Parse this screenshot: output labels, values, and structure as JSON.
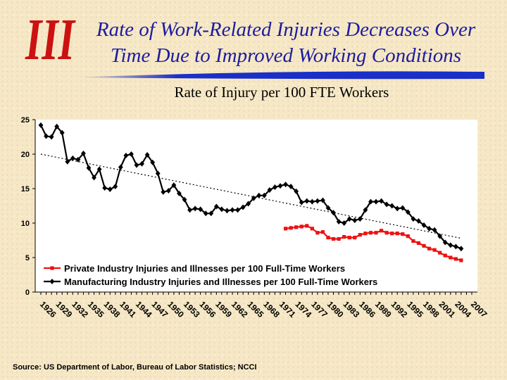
{
  "header": {
    "title_line1": "Rate of Work-Related Injuries Decreases Over",
    "title_line2": "Time Due to Improved Working Conditions",
    "logo_text": "III"
  },
  "footer": {
    "source": "Source: US Department of Labor, Bureau of Labor Statistics; NCCI"
  },
  "colors": {
    "title": "#1c1ca0",
    "logo": "#cc1111",
    "rule": "#1a2ec8",
    "private_series": "#ee1111",
    "manufacturing_series": "#000000",
    "plot_background": "#ffffff"
  },
  "chart_data": {
    "type": "line",
    "title": "Rate of Injury per 100 FTE Workers",
    "xlabel": "",
    "ylabel": "",
    "ylim": [
      0,
      25
    ],
    "xlim": [
      1926,
      2007
    ],
    "yticks": [
      0,
      5,
      10,
      15,
      20,
      25
    ],
    "x_tick_labels": [
      1926,
      1929,
      1932,
      1935,
      1938,
      1941,
      1944,
      1947,
      1950,
      1953,
      1956,
      1959,
      1962,
      1965,
      1968,
      1971,
      1974,
      1977,
      1980,
      1983,
      1986,
      1989,
      1992,
      1995,
      1998,
      2001,
      2004,
      2007
    ],
    "grid": false,
    "legend_position": "bottom-left inside plot",
    "series": [
      {
        "name": "Private Industry Injuries and Illnesses per 100 Full-Time Workers",
        "marker": "square",
        "x": [
          1972,
          1973,
          1974,
          1975,
          1976,
          1977,
          1978,
          1979,
          1980,
          1981,
          1982,
          1983,
          1984,
          1985,
          1986,
          1987,
          1988,
          1989,
          1990,
          1991,
          1992,
          1993,
          1994,
          1995,
          1996,
          1997,
          1998,
          1999,
          2000,
          2001,
          2002,
          2003,
          2004,
          2005
        ],
        "values": [
          9.2,
          9.3,
          9.4,
          9.5,
          9.6,
          9.2,
          8.6,
          8.7,
          7.9,
          7.7,
          7.7,
          8.0,
          7.9,
          7.9,
          8.3,
          8.5,
          8.6,
          8.6,
          8.9,
          8.6,
          8.5,
          8.5,
          8.4,
          8.1,
          7.4,
          7.1,
          6.7,
          6.3,
          6.1,
          5.7,
          5.3,
          5.0,
          4.8,
          4.6
        ]
      },
      {
        "name": "Manufacturing Industry Injuries and Illnesses per 100 Full-Time Workers",
        "marker": "diamond",
        "x": [
          1926,
          1927,
          1928,
          1929,
          1930,
          1931,
          1932,
          1933,
          1934,
          1935,
          1936,
          1937,
          1938,
          1939,
          1940,
          1941,
          1942,
          1943,
          1944,
          1945,
          1946,
          1947,
          1948,
          1949,
          1950,
          1951,
          1952,
          1953,
          1954,
          1955,
          1956,
          1957,
          1958,
          1959,
          1960,
          1961,
          1962,
          1963,
          1964,
          1965,
          1966,
          1967,
          1968,
          1969,
          1970,
          1971,
          1972,
          1973,
          1974,
          1975,
          1976,
          1977,
          1978,
          1979,
          1980,
          1981,
          1982,
          1983,
          1984,
          1985,
          1986,
          1987,
          1988,
          1989,
          1990,
          1991,
          1992,
          1993,
          1994,
          1995,
          1996,
          1997,
          1998,
          1999,
          2000,
          2001,
          2002,
          2003,
          2004,
          2005
        ],
        "values": [
          24.2,
          22.6,
          22.5,
          24.0,
          23.1,
          18.9,
          19.4,
          19.2,
          20.1,
          18.0,
          16.6,
          17.8,
          15.1,
          14.9,
          15.3,
          18.1,
          19.8,
          20.0,
          18.4,
          18.6,
          19.9,
          18.8,
          17.2,
          14.5,
          14.7,
          15.5,
          14.3,
          13.4,
          11.9,
          12.1,
          12.0,
          11.4,
          11.4,
          12.4,
          12.0,
          11.8,
          11.9,
          11.9,
          12.3,
          12.8,
          13.6,
          14.0,
          14.0,
          14.8,
          15.2,
          15.4,
          15.6,
          15.3,
          14.6,
          13.0,
          13.2,
          13.1,
          13.2,
          13.3,
          12.2,
          11.5,
          10.2,
          10.0,
          10.6,
          10.4,
          10.6,
          11.9,
          13.1,
          13.1,
          13.2,
          12.7,
          12.5,
          12.1,
          12.2,
          11.6,
          10.6,
          10.3,
          9.7,
          9.2,
          9.0,
          8.1,
          7.2,
          6.8,
          6.6,
          6.3
        ]
      },
      {
        "name": "Trend",
        "style": "dotted",
        "x": [
          1926,
          2005
        ],
        "values": [
          20.0,
          7.8
        ]
      }
    ]
  }
}
